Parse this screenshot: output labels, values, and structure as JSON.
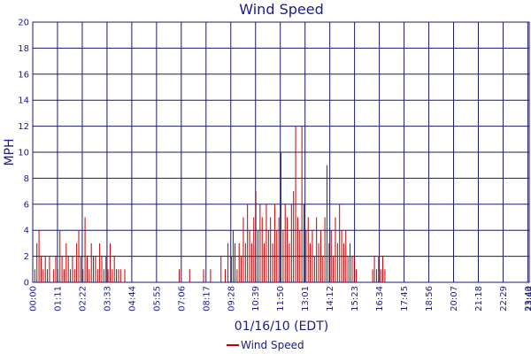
{
  "chart_data": {
    "type": "bar",
    "title": "Wind Speed",
    "xlabel": "01/16/10 (EDT)",
    "ylabel": "MPH",
    "ylim": [
      0,
      20
    ],
    "y_ticks": [
      "0",
      "2",
      "4",
      "6",
      "8",
      "10",
      "12",
      "14",
      "16",
      "18",
      "20"
    ],
    "x_ticks": [
      "00:00",
      "01:11",
      "02:22",
      "03:33",
      "04:44",
      "05:55",
      "07:06",
      "08:17",
      "09:28",
      "10:39",
      "11:50",
      "13:01",
      "14:12",
      "15:23",
      "16:34",
      "17:45",
      "18:56",
      "20:07",
      "21:18",
      "22:29",
      "23:40",
      "23:44"
    ],
    "grid": true,
    "legend": {
      "position": "bottom-center",
      "entries": [
        "Wind Speed"
      ]
    },
    "series": [
      {
        "name": "Wind Speed",
        "color": "#c00000",
        "values": [
          [
            0,
            2
          ],
          [
            6,
            1
          ],
          [
            12,
            3
          ],
          [
            18,
            4
          ],
          [
            24,
            2
          ],
          [
            30,
            1
          ],
          [
            36,
            2
          ],
          [
            42,
            1
          ],
          [
            48,
            2
          ],
          [
            54,
            0
          ],
          [
            60,
            1
          ],
          [
            66,
            2
          ],
          [
            72,
            1
          ],
          [
            78,
            4
          ],
          [
            84,
            2
          ],
          [
            90,
            1
          ],
          [
            96,
            3
          ],
          [
            102,
            2
          ],
          [
            108,
            1
          ],
          [
            114,
            2
          ],
          [
            120,
            1
          ],
          [
            126,
            3
          ],
          [
            132,
            4
          ],
          [
            138,
            2
          ],
          [
            144,
            1
          ],
          [
            150,
            5
          ],
          [
            156,
            2
          ],
          [
            162,
            1
          ],
          [
            168,
            3
          ],
          [
            174,
            2
          ],
          [
            180,
            2
          ],
          [
            186,
            1
          ],
          [
            192,
            3
          ],
          [
            198,
            2
          ],
          [
            204,
            1
          ],
          [
            210,
            2
          ],
          [
            216,
            1
          ],
          [
            222,
            3
          ],
          [
            228,
            1
          ],
          [
            234,
            2
          ],
          [
            240,
            1
          ],
          [
            246,
            1
          ],
          [
            252,
            1
          ],
          [
            258,
            0
          ],
          [
            264,
            1
          ],
          [
            270,
            0
          ],
          [
            420,
            1
          ],
          [
            450,
            1
          ],
          [
            490,
            1
          ],
          [
            510,
            1
          ],
          [
            540,
            2
          ],
          [
            552,
            1
          ],
          [
            560,
            3
          ],
          [
            570,
            2
          ],
          [
            575,
            4
          ],
          [
            580,
            3
          ],
          [
            586,
            1
          ],
          [
            592,
            3
          ],
          [
            598,
            2
          ],
          [
            604,
            5
          ],
          [
            610,
            3
          ],
          [
            616,
            6
          ],
          [
            622,
            4
          ],
          [
            628,
            3
          ],
          [
            634,
            5
          ],
          [
            640,
            7
          ],
          [
            646,
            4
          ],
          [
            652,
            6
          ],
          [
            658,
            5
          ],
          [
            664,
            3
          ],
          [
            670,
            6
          ],
          [
            676,
            4
          ],
          [
            682,
            5
          ],
          [
            688,
            3
          ],
          [
            694,
            6
          ],
          [
            700,
            4
          ],
          [
            706,
            5
          ],
          [
            712,
            10
          ],
          [
            718,
            4
          ],
          [
            724,
            6
          ],
          [
            730,
            5
          ],
          [
            736,
            3
          ],
          [
            742,
            6
          ],
          [
            748,
            7
          ],
          [
            754,
            12
          ],
          [
            760,
            5
          ],
          [
            766,
            4
          ],
          [
            772,
            12
          ],
          [
            778,
            6
          ],
          [
            784,
            4
          ],
          [
            790,
            5
          ],
          [
            796,
            3
          ],
          [
            802,
            4
          ],
          [
            808,
            2
          ],
          [
            814,
            5
          ],
          [
            820,
            3
          ],
          [
            826,
            4
          ],
          [
            832,
            2
          ],
          [
            838,
            5
          ],
          [
            844,
            9
          ],
          [
            850,
            3
          ],
          [
            856,
            4
          ],
          [
            862,
            2
          ],
          [
            868,
            5
          ],
          [
            874,
            3
          ],
          [
            880,
            6
          ],
          [
            886,
            4
          ],
          [
            892,
            3
          ],
          [
            898,
            4
          ],
          [
            904,
            2
          ],
          [
            910,
            3
          ],
          [
            916,
            2
          ],
          [
            922,
            2
          ],
          [
            928,
            1
          ],
          [
            975,
            1
          ],
          [
            980,
            2
          ],
          [
            986,
            1
          ],
          [
            992,
            2
          ],
          [
            998,
            1
          ],
          [
            1004,
            2
          ],
          [
            1010,
            1
          ]
        ]
      }
    ]
  }
}
